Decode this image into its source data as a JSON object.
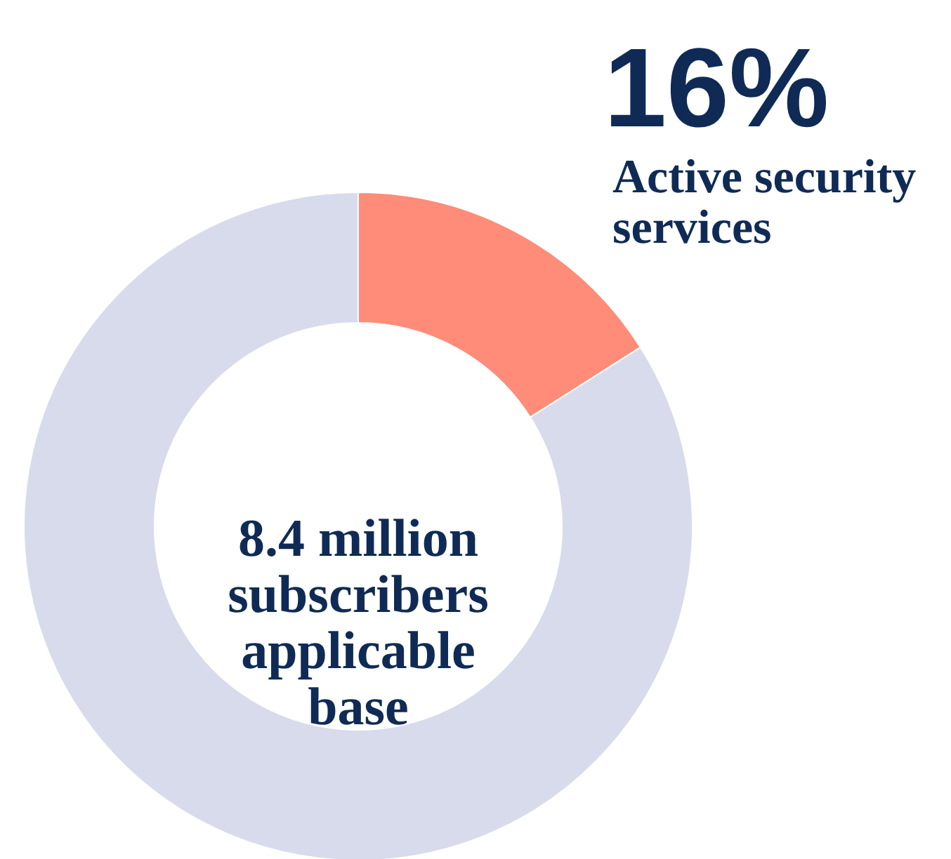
{
  "chart_data": {
    "type": "donut",
    "categories": [
      "Active security services",
      null
    ],
    "values": [
      16,
      84
    ],
    "colors": [
      "#ff8c78",
      "#d8dbeb"
    ],
    "value_labels": [
      "16%",
      null
    ],
    "annotations": [
      "8.4 million subscribers applicable base"
    ]
  }
}
